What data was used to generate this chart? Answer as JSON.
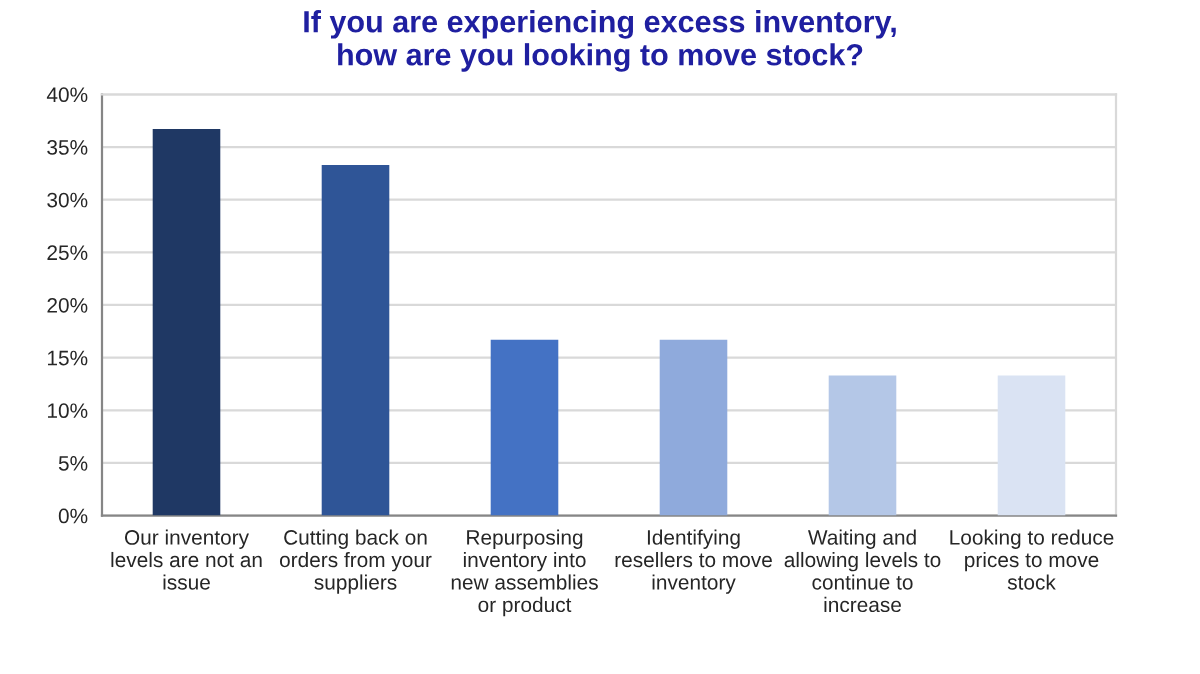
{
  "chart_data": {
    "type": "bar",
    "title": "If you are experiencing excess inventory,\nhow are you looking to move stock?",
    "categories": [
      "Our inventory\nlevels are not an\nissue",
      "Cutting back on\norders from your\nsuppliers",
      "Repurposing\ninventory into\nnew assemblies\nor product",
      "Identifying\nresellers to move\ninventory",
      "Waiting and\nallowing levels to\ncontinue to\nincrease",
      "Looking to reduce\nprices to move\nstock"
    ],
    "values": [
      36.7,
      33.3,
      16.7,
      16.7,
      13.3,
      13.3
    ],
    "colors": [
      "#1f3864",
      "#2f5597",
      "#4472c4",
      "#8faadc",
      "#b4c7e7",
      "#dae3f3"
    ],
    "ylim": [
      0,
      40
    ],
    "yticks": [
      {
        "value": 0,
        "label": "0%"
      },
      {
        "value": 5,
        "label": "5%"
      },
      {
        "value": 10,
        "label": "10%"
      },
      {
        "value": 15,
        "label": "15%"
      },
      {
        "value": 20,
        "label": "20%"
      },
      {
        "value": 25,
        "label": "25%"
      },
      {
        "value": 30,
        "label": "30%"
      },
      {
        "value": 35,
        "label": "35%"
      },
      {
        "value": 40,
        "label": "40%"
      }
    ],
    "grid": "y"
  }
}
